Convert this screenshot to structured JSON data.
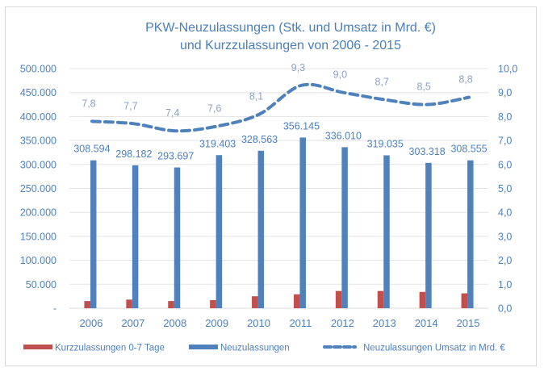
{
  "chart_data": {
    "type": "bar",
    "title": "PKW-Neuzulassungen (Stk. und Umsatz in Mrd. €)",
    "subtitle": "und Kurzzulassungen von 2006 - 2015",
    "categories": [
      "2006",
      "2007",
      "2008",
      "2009",
      "2010",
      "2011",
      "2012",
      "2013",
      "2014",
      "2015"
    ],
    "series": [
      {
        "name": "Kurzzulassungen 0-7 Tage",
        "type": "bar",
        "axis": "left",
        "color": "#c0504d",
        "values": [
          15000,
          18000,
          15000,
          17000,
          25000,
          29000,
          36000,
          36000,
          34000,
          31000
        ],
        "data_labels": []
      },
      {
        "name": "Neuzulassungen",
        "type": "bar",
        "axis": "left",
        "color": "#4f81bd",
        "values": [
          308594,
          298182,
          293697,
          319403,
          328563,
          356145,
          336010,
          319035,
          303318,
          308555
        ],
        "data_labels": [
          "308.594",
          "298.182",
          "293.697",
          "319.403",
          "328.563",
          "356.145",
          "336.010",
          "319.035",
          "303.318",
          "308.555"
        ]
      },
      {
        "name": "Neuzulassungen Umsatz in Mrd. €",
        "type": "line",
        "style": "dashed",
        "axis": "right",
        "color": "#4f81bd",
        "values": [
          7.8,
          7.7,
          7.4,
          7.6,
          8.1,
          9.3,
          9.0,
          8.7,
          8.5,
          8.8
        ],
        "data_labels": [
          "7,8",
          "7,7",
          "7,4",
          "7,6",
          "8,1",
          "9,3",
          "9,0",
          "8,7",
          "8,5",
          "8,8"
        ]
      }
    ],
    "y_left": {
      "ylim": [
        0,
        500000
      ],
      "ticks": [
        0,
        50000,
        100000,
        150000,
        200000,
        250000,
        300000,
        350000,
        400000,
        450000,
        500000
      ],
      "tick_labels": [
        "-",
        "50.000",
        "100.000",
        "150.000",
        "200.000",
        "250.000",
        "300.000",
        "350.000",
        "400.000",
        "450.000",
        "500.000"
      ]
    },
    "y_right": {
      "ylim": [
        0,
        10
      ],
      "ticks": [
        0,
        1,
        2,
        3,
        4,
        5,
        6,
        7,
        8,
        9,
        10
      ],
      "tick_labels": [
        "0,0",
        "1,0",
        "2,0",
        "3,0",
        "4,0",
        "5,0",
        "6,0",
        "7,0",
        "8,0",
        "9,0",
        "10,0"
      ]
    },
    "xlabel": "",
    "ylabel": "",
    "grid": true,
    "legend": "bottom",
    "colors": {
      "text": "#4f81bd",
      "title": "#4a7ebb",
      "grid": "#e3e3e3",
      "line_label": "#8da2bf"
    }
  }
}
